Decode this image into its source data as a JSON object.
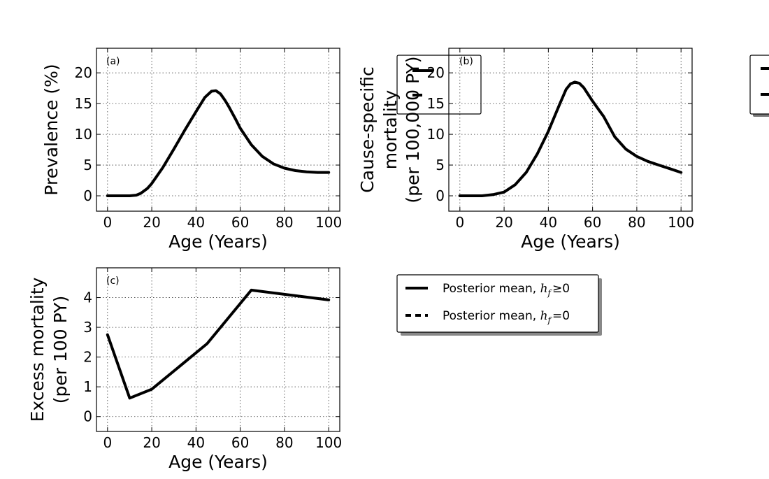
{
  "chart_data": [
    {
      "type": "line",
      "panel_tag": "(a)",
      "xlabel": "Age (Years)",
      "ylabel": [
        "Prevalence (%)"
      ],
      "xlim": [
        -5,
        105
      ],
      "ylim": [
        -2.5,
        24
      ],
      "xticks": [
        0,
        20,
        40,
        60,
        80,
        100
      ],
      "yticks": [
        0,
        5,
        10,
        15,
        20
      ],
      "grid": true,
      "series": [
        {
          "style": "solid",
          "x": [
            0,
            5,
            10,
            13,
            15,
            18,
            20,
            25,
            30,
            35,
            40,
            44,
            47,
            49,
            51,
            53,
            55,
            58,
            60,
            65,
            70,
            75,
            80,
            85,
            90,
            95,
            100
          ],
          "y": [
            0,
            0,
            0,
            0.1,
            0.4,
            1.2,
            2.0,
            4.6,
            7.6,
            10.7,
            13.7,
            16.0,
            17.0,
            17.1,
            16.6,
            15.6,
            14.4,
            12.4,
            11.0,
            8.3,
            6.4,
            5.2,
            4.5,
            4.1,
            3.9,
            3.8,
            3.8
          ]
        }
      ]
    },
    {
      "type": "line",
      "panel_tag": "(b)",
      "xlabel": "Age (Years)",
      "ylabel": [
        "Cause-specific",
        "mortality",
        "(per 100,000 PY)"
      ],
      "xlim": [
        -5,
        105
      ],
      "ylim": [
        -2.5,
        24
      ],
      "xticks": [
        0,
        20,
        40,
        60,
        80,
        100
      ],
      "yticks": [
        0,
        5,
        10,
        15,
        20
      ],
      "grid": true,
      "series": [
        {
          "style": "solid",
          "x": [
            0,
            5,
            10,
            15,
            20,
            25,
            30,
            35,
            40,
            45,
            48,
            50,
            52,
            54,
            56,
            60,
            63,
            65,
            70,
            75,
            80,
            85,
            90,
            95,
            100
          ],
          "y": [
            0,
            0,
            0,
            0.2,
            0.6,
            1.8,
            3.8,
            6.8,
            10.5,
            14.8,
            17.3,
            18.2,
            18.5,
            18.3,
            17.6,
            15.4,
            13.9,
            12.9,
            9.6,
            7.6,
            6.4,
            5.6,
            5.0,
            4.4,
            3.8
          ]
        }
      ]
    },
    {
      "type": "line",
      "panel_tag": "(c)",
      "xlabel": "Age (Years)",
      "ylabel": [
        "Excess mortality",
        "(per 100 PY)"
      ],
      "xlim": [
        -5,
        105
      ],
      "ylim": [
        -0.5,
        5
      ],
      "xticks": [
        0,
        20,
        40,
        60,
        80,
        100
      ],
      "yticks": [
        0,
        1,
        2,
        3,
        4
      ],
      "grid": true,
      "series": [
        {
          "style": "solid",
          "x": [
            0,
            10,
            20,
            45,
            65,
            100
          ],
          "y": [
            2.75,
            0.62,
            0.92,
            2.45,
            4.25,
            3.92
          ]
        }
      ]
    }
  ],
  "legend": {
    "items": [
      {
        "style": "solid",
        "label": "Posterior mean, ",
        "math": "h",
        "sub": "f",
        "rel": "≥0"
      },
      {
        "style": "dashed",
        "label": "Posterior mean, ",
        "math": "h",
        "sub": "f",
        "rel": "=0"
      }
    ]
  }
}
